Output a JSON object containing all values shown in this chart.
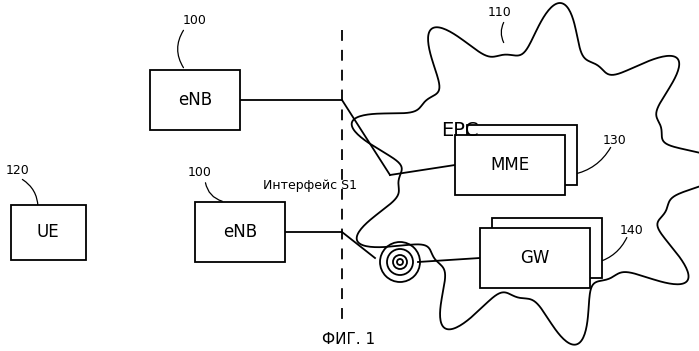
{
  "bg_color": "#ffffff",
  "title": "ФИГ. 1",
  "title_fontsize": 11,
  "labels": {
    "enb1": "eNB",
    "enb2": "eNB",
    "ue": "UE",
    "epc": "EPC",
    "mme": "MME",
    "gw": "GW",
    "interface": "Интерфейс S1"
  },
  "ref_numbers": {
    "100_top": "100",
    "110": "110",
    "120": "120",
    "100_bot": "100",
    "130": "130",
    "140": "140"
  }
}
